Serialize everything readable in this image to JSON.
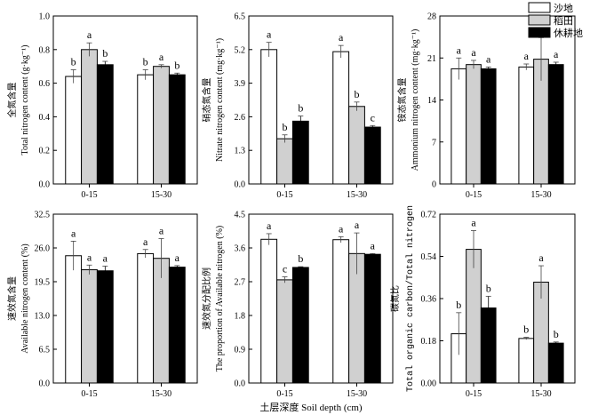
{
  "colors": {
    "sand": "#ffffff",
    "paddy": "#d0d0d0",
    "fallow": "#000000",
    "axis": "#000000"
  },
  "legend": {
    "items": [
      {
        "key": "sand",
        "label": "沙地"
      },
      {
        "key": "paddy",
        "label": "稻田"
      },
      {
        "key": "fallow",
        "label": "休耕地"
      }
    ]
  },
  "xaxis_title": "土层深度  Soil depth (cm)",
  "chart_data": [
    {
      "type": "bar",
      "id": "total-n",
      "ylabel_cn": "全氮含量",
      "ylabel_en": "Total nitrogen content (g·kg⁻¹)",
      "ylim": [
        0.0,
        1.0
      ],
      "yticks": [
        "0.0",
        "0.2",
        "0.4",
        "0.6",
        "0.8",
        "1.0"
      ],
      "categories": [
        "0-15",
        "15-30"
      ],
      "series": [
        {
          "name": "沙地",
          "values": [
            0.64,
            0.65
          ],
          "errors": [
            0.04,
            0.03
          ],
          "letters": [
            "b",
            "b"
          ]
        },
        {
          "name": "稻田",
          "values": [
            0.8,
            0.7
          ],
          "errors": [
            0.04,
            0.01
          ],
          "letters": [
            "a",
            "a"
          ]
        },
        {
          "name": "休耕地",
          "values": [
            0.71,
            0.65
          ],
          "errors": [
            0.02,
            0.01
          ],
          "letters": [
            "b",
            "b"
          ]
        }
      ]
    },
    {
      "type": "bar",
      "id": "nitrate-n",
      "ylabel_cn": "硝态氮含量",
      "ylabel_en": "Nitrate nitrogen content (mg·kg⁻¹)",
      "ylim": [
        0.0,
        6.5
      ],
      "yticks": [
        "0.0",
        "1.3",
        "2.6",
        "3.9",
        "5.2",
        "6.5"
      ],
      "categories": [
        "0-15",
        "15-30"
      ],
      "series": [
        {
          "name": "沙地",
          "values": [
            5.2,
            5.12
          ],
          "errors": [
            0.28,
            0.24
          ],
          "letters": [
            "a",
            "a"
          ]
        },
        {
          "name": "稻田",
          "values": [
            1.75,
            3.0
          ],
          "errors": [
            0.15,
            0.17
          ],
          "letters": [
            "b",
            "b"
          ]
        },
        {
          "name": "休耕地",
          "values": [
            2.43,
            2.2
          ],
          "errors": [
            0.2,
            0.06
          ],
          "letters": [
            "b",
            "c"
          ]
        }
      ]
    },
    {
      "type": "bar",
      "id": "ammonium-n",
      "ylabel_cn": "铵态氮含量",
      "ylabel_en": "Ammonium nitrogen content (mg·kg⁻¹)",
      "ylim": [
        0,
        28
      ],
      "yticks": [
        "0",
        "7",
        "14",
        "21",
        "28"
      ],
      "categories": [
        "0-15",
        "15-30"
      ],
      "series": [
        {
          "name": "沙地",
          "values": [
            19.2,
            19.5
          ],
          "errors": [
            1.8,
            0.5
          ],
          "letters": [
            "a",
            "a"
          ]
        },
        {
          "name": "稻田",
          "values": [
            19.9,
            20.8
          ],
          "errors": [
            0.7,
            3.6
          ],
          "letters": [
            "a",
            "a"
          ]
        },
        {
          "name": "休耕地",
          "values": [
            19.2,
            19.9
          ],
          "errors": [
            0.3,
            0.4
          ],
          "letters": [
            "a",
            "a"
          ]
        }
      ]
    },
    {
      "type": "bar",
      "id": "available-n",
      "ylabel_cn": "速效氮含量",
      "ylabel_en": "Available nitrogen content (%)",
      "ylim": [
        0.0,
        32.5
      ],
      "yticks": [
        "0.0",
        "6.5",
        "13.0",
        "19.5",
        "26.0",
        "32.5"
      ],
      "categories": [
        "0-15",
        "15-30"
      ],
      "series": [
        {
          "name": "沙地",
          "values": [
            24.5,
            24.9
          ],
          "errors": [
            2.8,
            0.8
          ],
          "letters": [
            "a",
            "a"
          ]
        },
        {
          "name": "稻田",
          "values": [
            21.8,
            24.0
          ],
          "errors": [
            0.9,
            3.8
          ],
          "letters": [
            "a",
            "a"
          ]
        },
        {
          "name": "休耕地",
          "values": [
            21.6,
            22.3
          ],
          "errors": [
            0.9,
            0.3
          ],
          "letters": [
            "a",
            "a"
          ]
        }
      ]
    },
    {
      "type": "bar",
      "id": "available-n-proportion",
      "ylabel_cn": "速效氮分配比例",
      "ylabel_en": "The proportion of Available nitrogen (%)",
      "ylim": [
        0.0,
        4.5
      ],
      "yticks": [
        "0.0",
        "0.9",
        "1.8",
        "2.7",
        "3.6",
        "4.5"
      ],
      "categories": [
        "0-15",
        "15-30"
      ],
      "series": [
        {
          "name": "沙地",
          "values": [
            3.83,
            3.82
          ],
          "errors": [
            0.15,
            0.08
          ],
          "letters": [
            "a",
            "a"
          ]
        },
        {
          "name": "稻田",
          "values": [
            2.75,
            3.45
          ],
          "errors": [
            0.08,
            0.55
          ],
          "letters": [
            "c",
            "a"
          ]
        },
        {
          "name": "休耕地",
          "values": [
            3.08,
            3.43
          ],
          "errors": [
            0.02,
            0.02
          ],
          "letters": [
            "b",
            "a"
          ]
        }
      ]
    },
    {
      "type": "bar",
      "id": "cn-ratio",
      "ylabel_cn": "碳氮比",
      "ylabel_en": "Total organic carbon/Total nitrogen",
      "ylim": [
        0.0,
        0.72
      ],
      "yticks": [
        "0.00",
        "0.18",
        "0.36",
        "0.54",
        "0.72"
      ],
      "categories": [
        "0-15",
        "15-30"
      ],
      "series": [
        {
          "name": "沙地",
          "values": [
            0.21,
            0.19
          ],
          "errors": [
            0.09,
            0.005
          ],
          "letters": [
            "b",
            "b"
          ]
        },
        {
          "name": "稻田",
          "values": [
            0.57,
            0.43
          ],
          "errors": [
            0.08,
            0.07
          ],
          "letters": [
            "a",
            "a"
          ]
        },
        {
          "name": "休耕地",
          "values": [
            0.32,
            0.17
          ],
          "errors": [
            0.05,
            0.005
          ],
          "letters": [
            "b",
            "b"
          ]
        }
      ]
    }
  ]
}
